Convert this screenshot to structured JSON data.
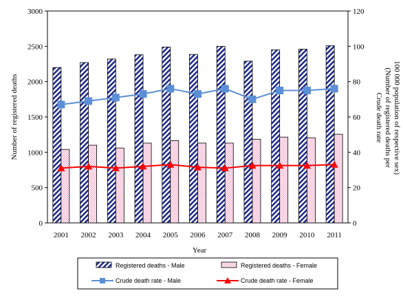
{
  "chart_data": {
    "type": "bar",
    "categories": [
      "2001",
      "2002",
      "2003",
      "2004",
      "2005",
      "2006",
      "2007",
      "2008",
      "2009",
      "2010",
      "2011"
    ],
    "xlabel": "Year",
    "ylabel": "Number of registered deaths",
    "y2label_line1": "Crude death rate",
    "y2label_line2": "(Number of registered deaths per",
    "y2label_line3": "100 000 population of respective sex)",
    "ylim": [
      0,
      3000
    ],
    "y2lim": [
      0,
      120
    ],
    "yticks": [
      0,
      500,
      1000,
      1500,
      2000,
      2500,
      3000
    ],
    "y2ticks": [
      0,
      20,
      40,
      60,
      80,
      100,
      120
    ],
    "grid": false,
    "legend_position": "bottom",
    "series": [
      {
        "name": "Registered deaths - Male",
        "kind": "bar",
        "axis": "left",
        "color": "#1f2a8c",
        "values": [
          2200,
          2270,
          2320,
          2380,
          2490,
          2385,
          2500,
          2290,
          2450,
          2460,
          2510
        ]
      },
      {
        "name": "Registered deaths - Female",
        "kind": "bar",
        "axis": "left",
        "color": "#f4cde0",
        "values": [
          1040,
          1100,
          1060,
          1130,
          1165,
          1130,
          1130,
          1185,
          1215,
          1205,
          1255
        ]
      },
      {
        "name": "Crude death rate - Male",
        "kind": "line",
        "axis": "right",
        "color": "#5b8fd6",
        "values": [
          67,
          69,
          71,
          73,
          76,
          73,
          76,
          70,
          75,
          75,
          76
        ]
      },
      {
        "name": "Crude death rate - Female",
        "kind": "line",
        "axis": "right",
        "color": "#ff0000",
        "values": [
          31,
          32,
          31,
          32,
          33,
          31.5,
          31,
          32.5,
          32.5,
          32.5,
          33
        ]
      }
    ]
  }
}
